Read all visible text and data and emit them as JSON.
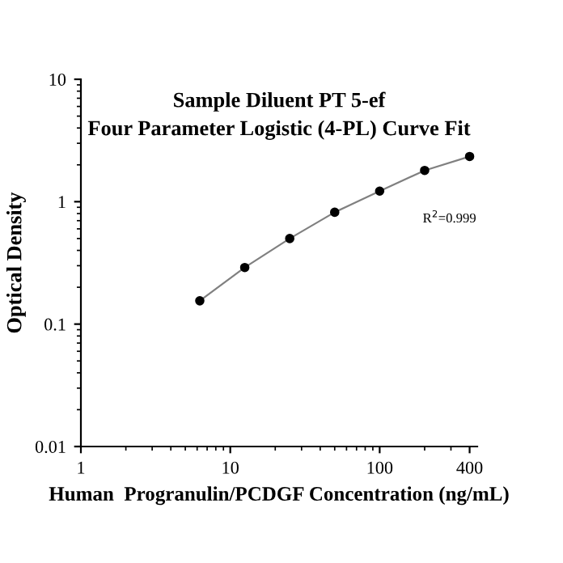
{
  "chart_data": {
    "type": "line",
    "title": "Sample Diluent PT 5-ef\nFour Parameter Logistic (4-PL) Curve Fit",
    "xlabel": "Human  Progranulin/PCDGF Concentration (ng/mL)",
    "ylabel": "Optical Density",
    "log": "xy",
    "x": [
      6.25,
      12.5,
      25,
      50,
      100,
      200,
      400
    ],
    "series": [
      {
        "color": "#808080",
        "marker": "none",
        "values": [
          0.155,
          0.29,
          0.5,
          0.82,
          1.22,
          1.8,
          2.34
        ]
      },
      {
        "type": "scatter",
        "color": "#000000",
        "marker": "circle",
        "values": [
          0.155,
          0.29,
          0.5,
          0.82,
          1.22,
          1.8,
          2.34
        ]
      }
    ],
    "xlim": [
      1,
      450
    ],
    "ylim": [
      0.01,
      10
    ],
    "xticks": [
      1,
      10,
      100,
      400
    ],
    "yticks": [
      0.01,
      0.1,
      1,
      10
    ],
    "grid": false,
    "legend": false,
    "annotations": [
      "R$^{2}$=0.999"
    ]
  }
}
